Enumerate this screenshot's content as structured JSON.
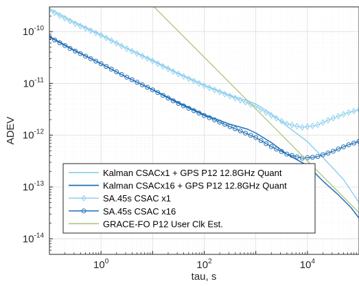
{
  "chart_data": {
    "type": "line",
    "xlabel": "tau, s",
    "ylabel": "ADEV",
    "xscale": "log",
    "yscale": "log",
    "xlim": [
      0.1,
      100000
    ],
    "ylim": [
      5e-15,
      3e-10
    ],
    "grid": true,
    "legend_position": "bottom-left",
    "x_ticks": [
      {
        "value": 1,
        "base": "10",
        "exp": "0"
      },
      {
        "value": 100,
        "base": "10",
        "exp": "2"
      },
      {
        "value": 10000,
        "base": "10",
        "exp": "4"
      }
    ],
    "y_ticks": [
      {
        "value": 1e-10,
        "base": "10",
        "exp": "-10"
      },
      {
        "value": 1e-11,
        "base": "10",
        "exp": "-11"
      },
      {
        "value": 1e-12,
        "base": "10",
        "exp": "-12"
      },
      {
        "value": 1e-13,
        "base": "10",
        "exp": "-13"
      },
      {
        "value": 1e-14,
        "base": "10",
        "exp": "-14"
      }
    ],
    "series": [
      {
        "name": "Kalman CSACx1 + GPS P12 12.8GHz Quant",
        "color": "#8fd0ee",
        "width": 1.5,
        "marker": "none",
        "points": [
          [
            0.1,
            2.8e-10
          ],
          [
            0.3,
            1.55e-10
          ],
          [
            1,
            8.7e-11
          ],
          [
            3,
            4.9e-11
          ],
          [
            10,
            2.8e-11
          ],
          [
            30,
            1.6e-11
          ],
          [
            100,
            9.3e-12
          ],
          [
            300,
            6e-12
          ],
          [
            700,
            4.6e-12
          ],
          [
            1000,
            4e-12
          ],
          [
            2000,
            2.6e-12
          ],
          [
            4000,
            1.5e-12
          ],
          [
            10000,
            7.5e-13
          ],
          [
            20000,
            3.7e-13
          ],
          [
            50000,
            1.4e-13
          ],
          [
            100000,
            5e-14
          ]
        ]
      },
      {
        "name": "Kalman CSACx16 + GPS P12 12.8GHz Quant",
        "color": "#1f6fb4",
        "width": 1.5,
        "marker": "none",
        "points": [
          [
            0.1,
            8e-11
          ],
          [
            0.3,
            4.4e-11
          ],
          [
            1,
            2.4e-11
          ],
          [
            3,
            1.35e-11
          ],
          [
            10,
            7.6e-12
          ],
          [
            30,
            4.4e-12
          ],
          [
            100,
            2.5e-12
          ],
          [
            300,
            1.65e-12
          ],
          [
            700,
            1.3e-12
          ],
          [
            1000,
            1.1e-12
          ],
          [
            2000,
            7.2e-13
          ],
          [
            4000,
            4.3e-13
          ],
          [
            10000,
            2.6e-13
          ],
          [
            20000,
            1.3e-13
          ],
          [
            40000,
            7e-14
          ],
          [
            70000,
            4e-14
          ],
          [
            100000,
            2.5e-14
          ]
        ]
      },
      {
        "name": "SA.45s CSAC x1",
        "color": "#8fd0ee",
        "width": 1.2,
        "marker": "diamond",
        "points": [
          [
            0.1,
            2.6e-10
          ],
          [
            0.3,
            1.45e-10
          ],
          [
            1,
            8.5e-11
          ],
          [
            3,
            4.8e-11
          ],
          [
            10,
            2.7e-11
          ],
          [
            30,
            1.55e-11
          ],
          [
            100,
            9e-12
          ],
          [
            300,
            5.8e-12
          ],
          [
            1000,
            3.6e-12
          ],
          [
            2000,
            2.4e-12
          ],
          [
            4000,
            1.65e-12
          ],
          [
            8000,
            1.42e-12
          ],
          [
            15000,
            1.55e-12
          ],
          [
            30000,
            2.1e-12
          ],
          [
            60000,
            2.7e-12
          ],
          [
            100000,
            3.1e-12
          ]
        ]
      },
      {
        "name": "SA.45s CSAC x16",
        "color": "#1f6fb4",
        "width": 1.2,
        "marker": "circle",
        "points": [
          [
            0.1,
            7.8e-11
          ],
          [
            0.3,
            4.3e-11
          ],
          [
            1,
            2.4e-11
          ],
          [
            3,
            1.35e-11
          ],
          [
            10,
            7.5e-12
          ],
          [
            30,
            4.2e-12
          ],
          [
            100,
            2.4e-12
          ],
          [
            300,
            1.5e-12
          ],
          [
            1000,
            9e-13
          ],
          [
            2000,
            6e-13
          ],
          [
            4000,
            4.3e-13
          ],
          [
            8000,
            3.6e-13
          ],
          [
            15000,
            3.8e-13
          ],
          [
            30000,
            4.8e-13
          ],
          [
            60000,
            6.4e-13
          ],
          [
            100000,
            7.6e-13
          ]
        ]
      },
      {
        "name": "GRACE-FO P12 User Clk Est.",
        "color": "#a9bf72",
        "width": 1.2,
        "marker": "none",
        "points": [
          [
            10,
            3.2e-10
          ],
          [
            100,
            3.2e-11
          ],
          [
            1000,
            3.2e-12
          ],
          [
            10000,
            3.2e-13
          ],
          [
            100000,
            3.2e-14
          ]
        ]
      }
    ]
  }
}
